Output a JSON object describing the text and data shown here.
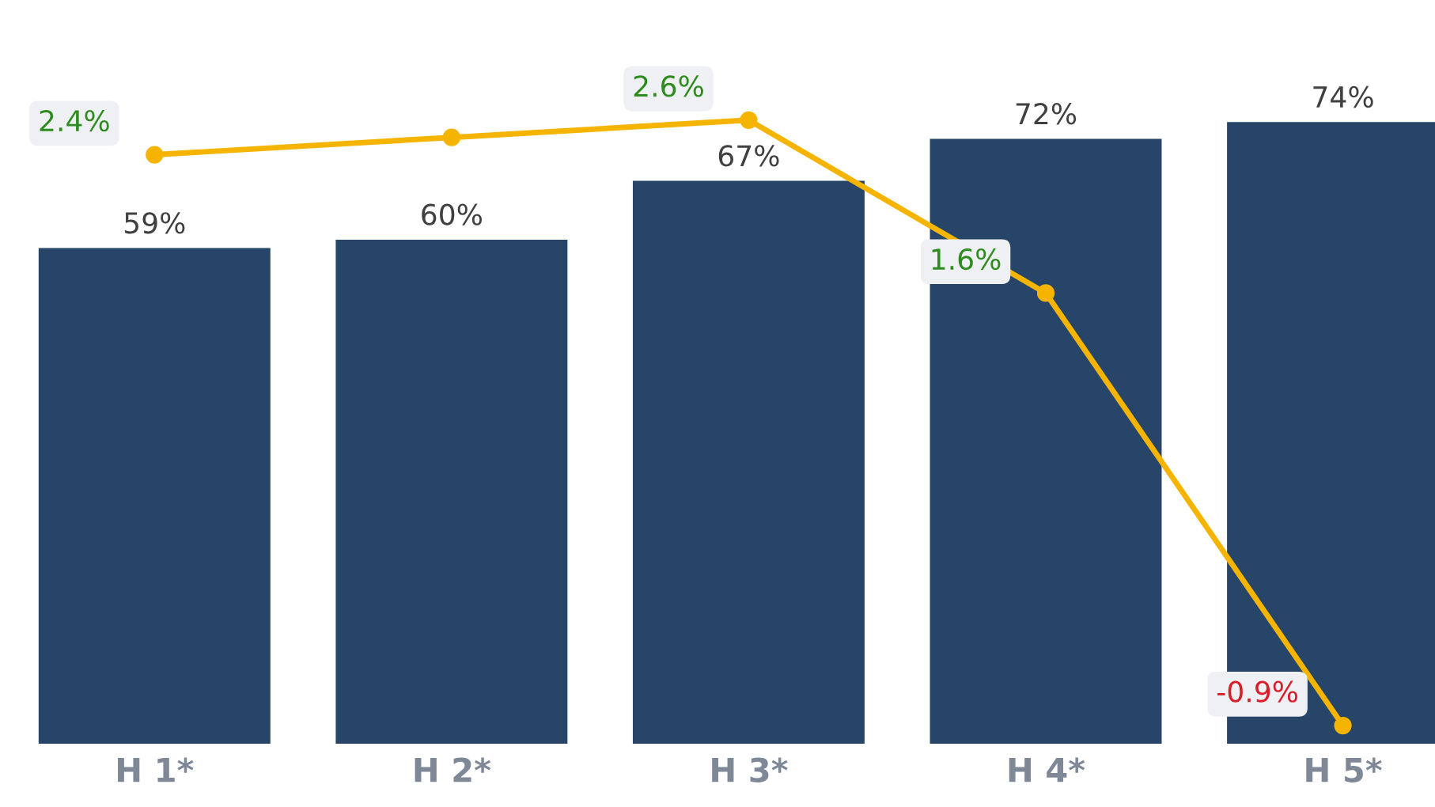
{
  "chart_data": {
    "type": "bar",
    "categories": [
      "H 1*",
      "H 2*",
      "H 3*",
      "H 4*",
      "H 5*"
    ],
    "tick_labels": "x",
    "grid": false,
    "legend": false,
    "series": [
      {
        "color": "#264569",
        "values": [
          59,
          60,
          67,
          72,
          74
        ],
        "value_labels": [
          "59%",
          "60%",
          "67%",
          "72%",
          "74%"
        ]
      },
      {
        "type": "line",
        "axis": "y2",
        "color": "#f5b400",
        "marker": "circle",
        "line_style": "solid",
        "values": [
          2.4,
          2.5,
          2.6,
          1.6,
          -0.9
        ],
        "value_labels": [
          "2.4%",
          null,
          "2.6%",
          "1.6%",
          "-0.9%"
        ]
      }
    ]
  }
}
